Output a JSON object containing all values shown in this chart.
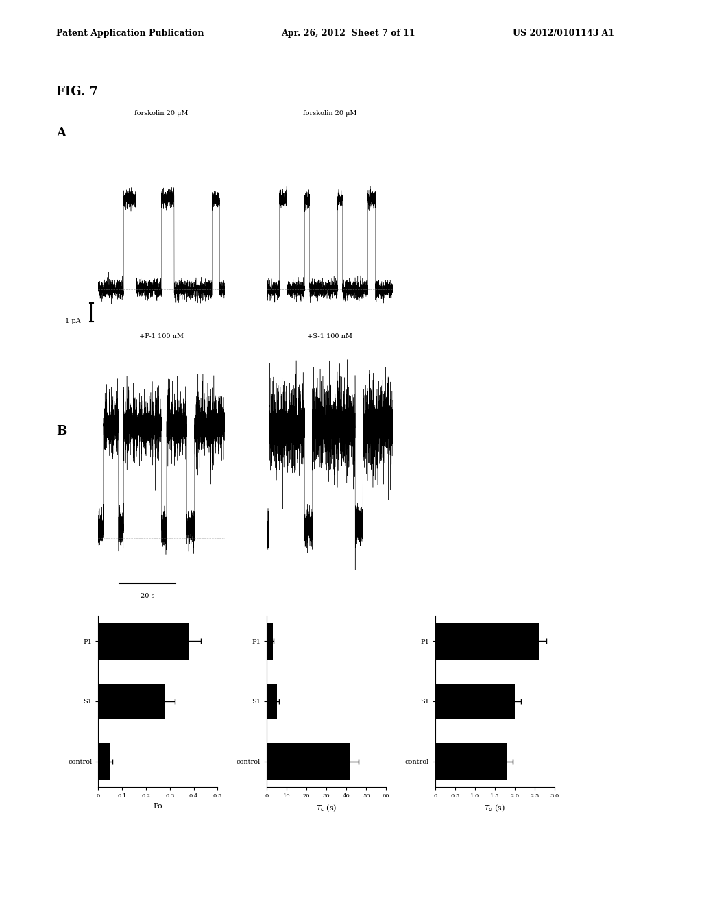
{
  "header_left": "Patent Application Publication",
  "header_center": "Apr. 26, 2012  Sheet 7 of 11",
  "header_right": "US 2012/0101143 A1",
  "fig_label": "FIG. 7",
  "panel_A_label": "A",
  "panel_B_label": "B",
  "trace1_label_top": "forskolin 20 μM",
  "trace1_label_bottom": "+P-1 100 nM",
  "trace2_label_top": "forskolin 20 μM",
  "trace2_label_bottom": "+S-1 100 nM",
  "scale_bar_y": "1 pA",
  "scale_bar_x": "20 s",
  "Po_ylabel": "Po",
  "Po_ylim": [
    0,
    0.5
  ],
  "Po_yticks": [
    0,
    0.1,
    0.2,
    0.3,
    0.4,
    0.5
  ],
  "Po_categories": [
    "control",
    "S1",
    "P1"
  ],
  "Po_values": [
    0.05,
    0.28,
    0.38
  ],
  "Po_errors": [
    0.01,
    0.04,
    0.05
  ],
  "Tc_ylabel": "T_c (s)",
  "Tc_ylim": [
    0,
    60
  ],
  "Tc_yticks": [
    0,
    10,
    20,
    30,
    40,
    50,
    60
  ],
  "Tc_categories": [
    "control",
    "S1",
    "P1"
  ],
  "Tc_values": [
    42,
    5,
    3
  ],
  "Tc_errors": [
    4,
    1,
    0.5
  ],
  "To_ylabel": "T_o (s)",
  "To_ylim": [
    0,
    3.0
  ],
  "To_yticks": [
    0,
    0.5,
    1.0,
    1.5,
    2.0,
    2.5,
    3.0
  ],
  "To_categories": [
    "control",
    "S1",
    "P1"
  ],
  "To_values": [
    1.8,
    2.0,
    2.6
  ],
  "To_errors": [
    0.15,
    0.15,
    0.2
  ],
  "bar_color": "#000000",
  "background_color": "#ffffff",
  "text_color": "#000000"
}
